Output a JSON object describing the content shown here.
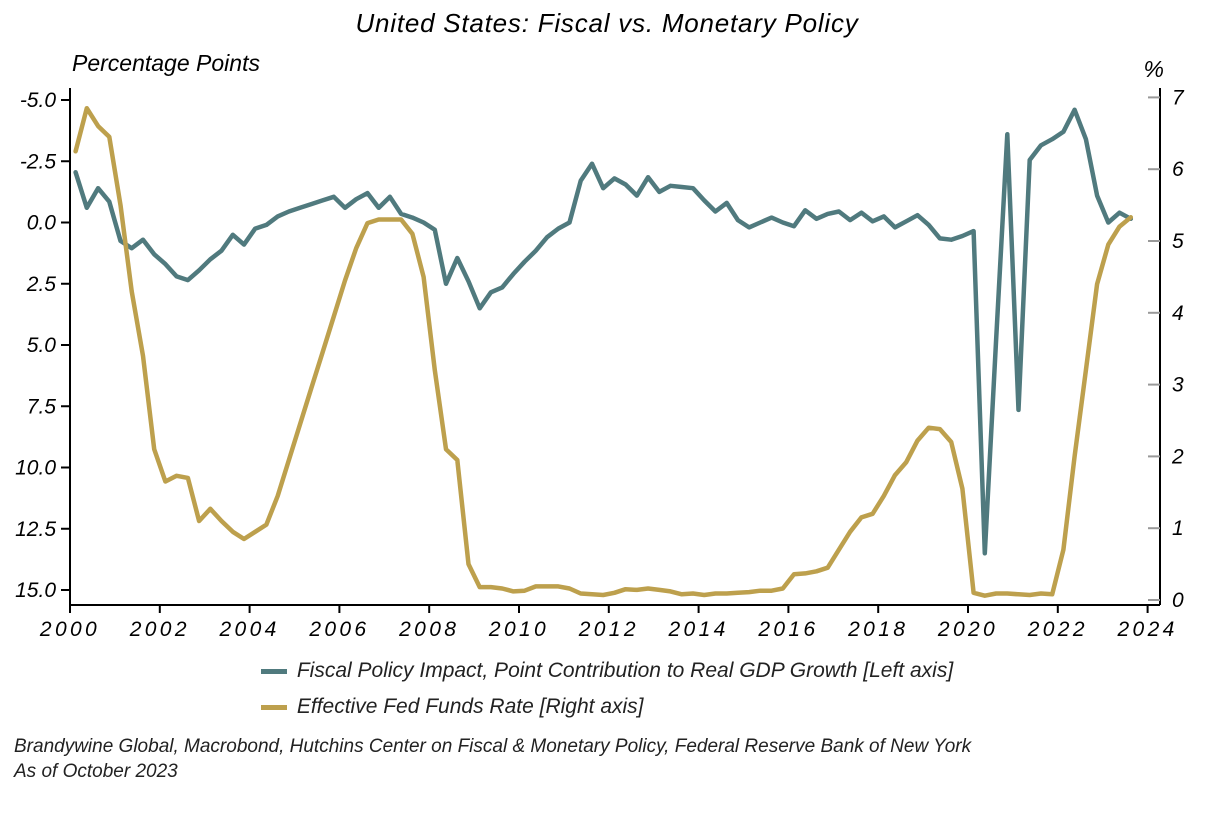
{
  "title": "United States: Fiscal vs. Monetary Policy",
  "left_axis_label": "Percentage Points",
  "right_axis_label": "%",
  "legend": {
    "items": [
      {
        "label": "Fiscal Policy Impact, Point Contribution to Real GDP Growth [Left axis]",
        "color": "#507a7e"
      },
      {
        "label": "Effective Fed Funds Rate [Right axis]",
        "color": "#bda04d"
      }
    ]
  },
  "source": {
    "line1": "Brandywine Global, Macrobond, Hutchins Center on Fiscal & Monetary Policy, Federal Reserve Bank of New York",
    "line2": "As of October 2023"
  },
  "colors": {
    "fiscal_line": "#507a7e",
    "fed_funds_line": "#bda04d",
    "axis": "#000000",
    "right_tick": "#999999",
    "background": "#ffffff"
  },
  "chart_data": {
    "type": "line",
    "title": "United States: Fiscal vs. Monetary Policy",
    "x_start": 2000.0,
    "x_step_years": 0.25,
    "x_end": 2023.5,
    "x_tick_labels": [
      "2000",
      "2002",
      "2004",
      "2006",
      "2008",
      "2010",
      "2012",
      "2014",
      "2016",
      "2018",
      "2020",
      "2022",
      "2024"
    ],
    "x_tick_values": [
      2000,
      2002,
      2004,
      2006,
      2008,
      2010,
      2012,
      2014,
      2016,
      2018,
      2020,
      2022,
      2024
    ],
    "grid": false,
    "legend_position": "bottom",
    "left_axis": {
      "label": "Percentage Points",
      "inverted": true,
      "range": [
        -5.0,
        15.0
      ],
      "tick_values": [
        -5.0,
        -2.5,
        0.0,
        2.5,
        5.0,
        7.5,
        10.0,
        12.5,
        15.0
      ],
      "tick_labels": [
        "-5.0",
        "-2.5",
        "0.0",
        "2.5",
        "5.0",
        "7.5",
        "10.0",
        "12.5",
        "15.0"
      ]
    },
    "right_axis": {
      "label": "%",
      "inverted": false,
      "range": [
        0,
        7
      ],
      "tick_values": [
        7,
        6,
        5,
        4,
        3,
        2,
        1,
        0
      ],
      "tick_labels": [
        "7",
        "6",
        "5",
        "4",
        "3",
        "2",
        "1",
        "0"
      ]
    },
    "series": [
      {
        "name": "Fiscal Policy Impact, Point Contribution to Real GDP Growth",
        "axis": "left",
        "color": "#507a7e",
        "values": [
          -2.05,
          -0.6,
          -1.4,
          -0.85,
          0.75,
          1.05,
          0.7,
          1.3,
          1.7,
          2.2,
          2.35,
          1.95,
          1.5,
          1.15,
          0.5,
          0.9,
          0.25,
          0.1,
          -0.25,
          -0.45,
          -0.6,
          -0.75,
          -0.9,
          -1.05,
          -0.6,
          -0.95,
          -1.2,
          -0.6,
          -1.05,
          -0.35,
          -0.2,
          0.0,
          0.3,
          2.5,
          1.45,
          2.4,
          3.5,
          2.85,
          2.65,
          2.1,
          1.6,
          1.15,
          0.6,
          0.25,
          0.0,
          -1.7,
          -2.4,
          -1.4,
          -1.8,
          -1.55,
          -1.1,
          -1.85,
          -1.25,
          -1.5,
          -1.45,
          -1.4,
          -0.9,
          -0.45,
          -0.8,
          -0.1,
          0.2,
          0.0,
          -0.2,
          0.0,
          0.15,
          -0.5,
          -0.15,
          -0.35,
          -0.45,
          -0.1,
          -0.4,
          -0.05,
          -0.25,
          0.2,
          -0.05,
          -0.3,
          0.1,
          0.65,
          0.7,
          0.55,
          0.35,
          13.5,
          4.8,
          -3.6,
          7.65,
          -2.55,
          -3.15,
          -3.4,
          -3.7,
          -4.6,
          -3.4,
          -1.1,
          0.0,
          -0.4,
          -0.15
        ]
      },
      {
        "name": "Effective Fed Funds Rate",
        "axis": "right",
        "color": "#bda04d",
        "values": [
          6.25,
          6.85,
          6.6,
          6.45,
          5.5,
          4.3,
          3.4,
          2.1,
          1.65,
          1.73,
          1.7,
          1.1,
          1.27,
          1.1,
          0.95,
          0.85,
          0.95,
          1.05,
          1.45,
          1.95,
          2.45,
          2.95,
          3.45,
          3.95,
          4.45,
          4.9,
          5.25,
          5.3,
          5.3,
          5.3,
          5.1,
          4.5,
          3.2,
          2.1,
          1.95,
          0.5,
          0.18,
          0.18,
          0.16,
          0.12,
          0.13,
          0.19,
          0.19,
          0.19,
          0.16,
          0.09,
          0.08,
          0.07,
          0.1,
          0.15,
          0.14,
          0.16,
          0.14,
          0.12,
          0.08,
          0.09,
          0.07,
          0.09,
          0.09,
          0.1,
          0.11,
          0.13,
          0.13,
          0.16,
          0.36,
          0.37,
          0.4,
          0.45,
          0.7,
          0.95,
          1.15,
          1.2,
          1.45,
          1.74,
          1.92,
          2.22,
          2.4,
          2.38,
          2.2,
          1.55,
          0.1,
          0.06,
          0.09,
          0.09,
          0.08,
          0.07,
          0.09,
          0.08,
          0.7,
          2.0,
          3.2,
          4.4,
          4.95,
          5.2,
          5.33
        ]
      }
    ]
  }
}
